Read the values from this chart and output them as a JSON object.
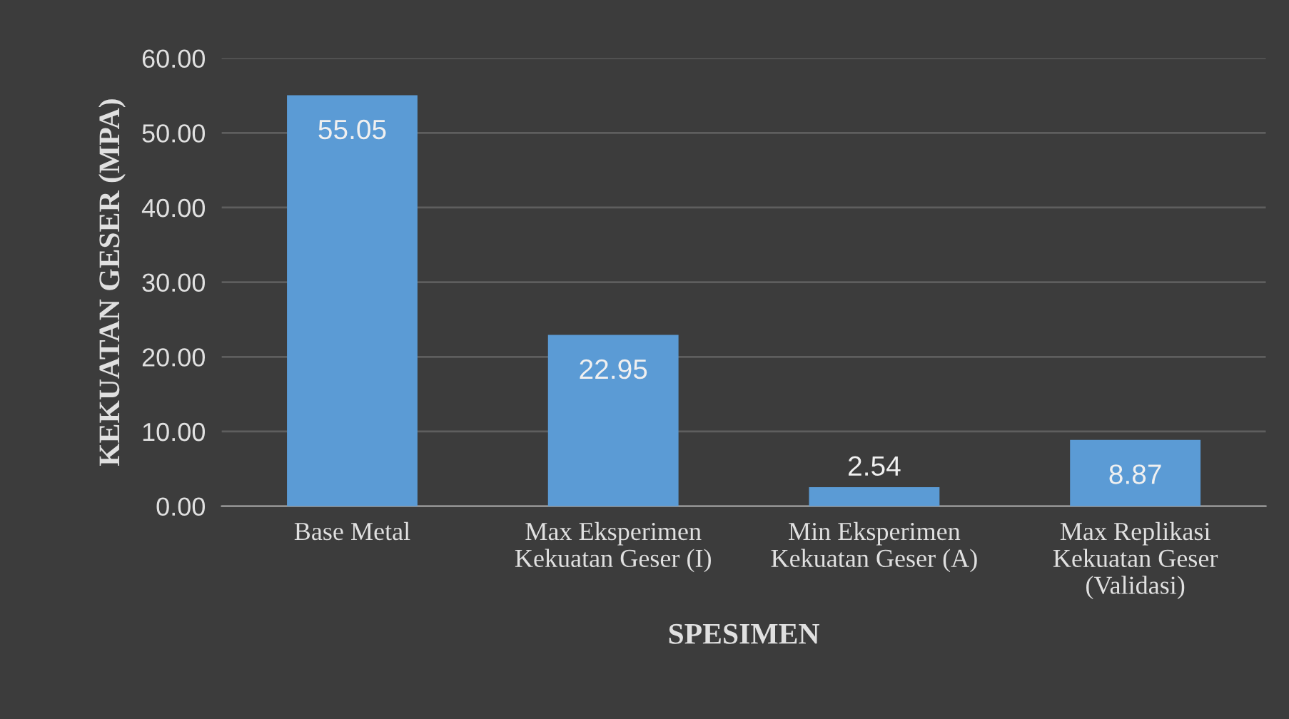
{
  "chart_data": {
    "type": "bar",
    "xlabel": "SPESIMEN",
    "ylabel": "KEKUATAN GESER (MPA)",
    "categories": [
      "Base Metal",
      "Max Eksperimen\nKekuatan Geser (I)",
      "Min Eksperimen\nKekuatan Geser (A)",
      "Max Replikasi\nKekuatan Geser\n(Validasi)"
    ],
    "values": [
      55.05,
      22.95,
      2.54,
      8.87
    ],
    "color": "#5b9bd5",
    "ylim": [
      0,
      60
    ],
    "yticks": [
      {
        "value": 0,
        "label": "0.00"
      },
      {
        "value": 10,
        "label": "10.00"
      },
      {
        "value": 20,
        "label": "20.00"
      },
      {
        "value": 30,
        "label": "30.00"
      },
      {
        "value": 40,
        "label": "40.00"
      },
      {
        "value": 50,
        "label": "50.00"
      },
      {
        "value": 60,
        "label": "60.00"
      }
    ],
    "grid": "y",
    "data_labels": true,
    "legend": false
  }
}
